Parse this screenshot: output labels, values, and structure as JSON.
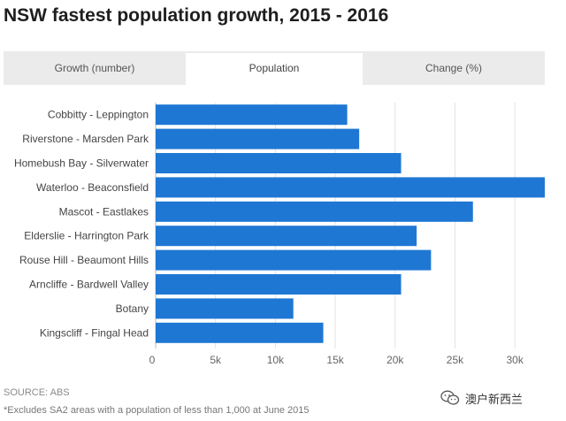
{
  "title": "NSW fastest population growth, 2015 - 2016",
  "tabs": [
    {
      "label": "Growth (number)",
      "active": false
    },
    {
      "label": "Population",
      "active": true
    },
    {
      "label": "Change (%)",
      "active": false
    }
  ],
  "chart_data": {
    "type": "bar",
    "orientation": "horizontal",
    "categories": [
      "Cobbitty - Leppington",
      "Riverstone - Marsden Park",
      "Homebush Bay - Silverwater",
      "Waterloo - Beaconsfield",
      "Mascot - Eastlakes",
      "Elderslie - Harrington Park",
      "Rouse Hill - Beaumont Hills",
      "Arncliffe - Bardwell Valley",
      "Botany",
      "Kingscliff - Fingal Head"
    ],
    "values": [
      16000,
      17000,
      20500,
      32500,
      26500,
      21800,
      23000,
      20500,
      11500,
      14000
    ],
    "xlim": [
      0,
      32500
    ],
    "xticks": [
      0,
      5000,
      10000,
      15000,
      20000,
      25000,
      30000
    ],
    "xtick_labels": [
      "0",
      "5k",
      "10k",
      "15k",
      "20k",
      "25k",
      "30k"
    ],
    "grid": true,
    "bar_color": "#1f77d4"
  },
  "source": "SOURCE: ABS",
  "footnote": "*Excludes SA2 areas with a population of less than 1,000 at June 2015",
  "watermark": {
    "text": "澳户新西兰",
    "icon": "wechat-icon"
  }
}
